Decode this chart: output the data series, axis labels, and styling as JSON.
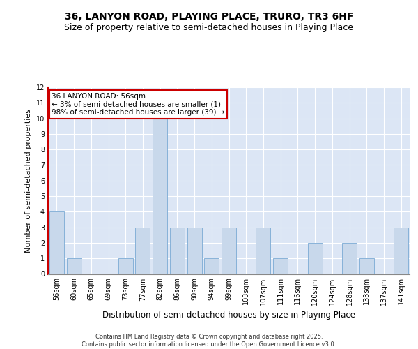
{
  "title1": "36, LANYON ROAD, PLAYING PLACE, TRURO, TR3 6HF",
  "title2": "Size of property relative to semi-detached houses in Playing Place",
  "xlabel": "Distribution of semi-detached houses by size in Playing Place",
  "ylabel": "Number of semi-detached properties",
  "categories": [
    "56sqm",
    "60sqm",
    "65sqm",
    "69sqm",
    "73sqm",
    "77sqm",
    "82sqm",
    "86sqm",
    "90sqm",
    "94sqm",
    "99sqm",
    "103sqm",
    "107sqm",
    "111sqm",
    "116sqm",
    "120sqm",
    "124sqm",
    "128sqm",
    "133sqm",
    "137sqm",
    "141sqm"
  ],
  "values": [
    4,
    1,
    0,
    0,
    1,
    3,
    10,
    3,
    3,
    1,
    3,
    0,
    3,
    1,
    0,
    2,
    0,
    2,
    1,
    0,
    3
  ],
  "highlight_index": 0,
  "bar_color": "#c8d8eb",
  "bar_edge_color": "#7aaad4",
  "annotation_box_color": "#ffffff",
  "annotation_box_edge": "#cc0000",
  "annotation_text": "36 LANYON ROAD: 56sqm\n← 3% of semi-detached houses are smaller (1)\n98% of semi-detached houses are larger (39) →",
  "ylim": [
    0,
    12
  ],
  "yticks": [
    0,
    1,
    2,
    3,
    4,
    5,
    6,
    7,
    8,
    9,
    10,
    11,
    12
  ],
  "bg_color": "#dce6f5",
  "footnote": "Contains HM Land Registry data © Crown copyright and database right 2025.\nContains public sector information licensed under the Open Government Licence v3.0.",
  "title_fontsize": 10,
  "subtitle_fontsize": 9,
  "tick_fontsize": 7,
  "ylabel_fontsize": 8,
  "xlabel_fontsize": 8.5,
  "annot_fontsize": 7.5,
  "footnote_fontsize": 6
}
